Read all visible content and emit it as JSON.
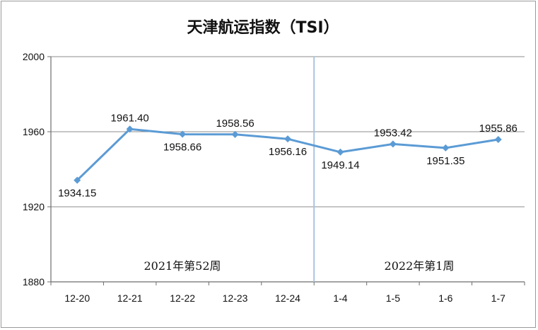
{
  "chart_data": {
    "type": "line",
    "title": "天津航运指数（TSI）",
    "categories": [
      "12-20",
      "12-21",
      "12-22",
      "12-23",
      "12-24",
      "1-4",
      "1-5",
      "1-6",
      "1-7"
    ],
    "series": [
      {
        "values": [
          1934.15,
          1961.4,
          1958.66,
          1958.56,
          1956.16,
          1949.14,
          1953.42,
          1951.35,
          1955.86
        ],
        "labels": [
          "1934.15",
          "1961.40",
          "1958.66",
          "1958.56",
          "1956.16",
          "1949.14",
          "1953.42",
          "1951.35",
          "1955.86"
        ],
        "color": "#5B9BD5"
      }
    ],
    "ylim": [
      1880,
      2000
    ],
    "yticks": [
      "1880",
      "1920",
      "1960",
      "2000"
    ],
    "grid": true,
    "period_labels": [
      "2021年第52周",
      "2022年第1周"
    ]
  },
  "colors": {
    "line": "#5B9BD5",
    "divider": "#A9C4E0",
    "gridline": "#8c8c8c",
    "axis": "#6e6e6e"
  }
}
